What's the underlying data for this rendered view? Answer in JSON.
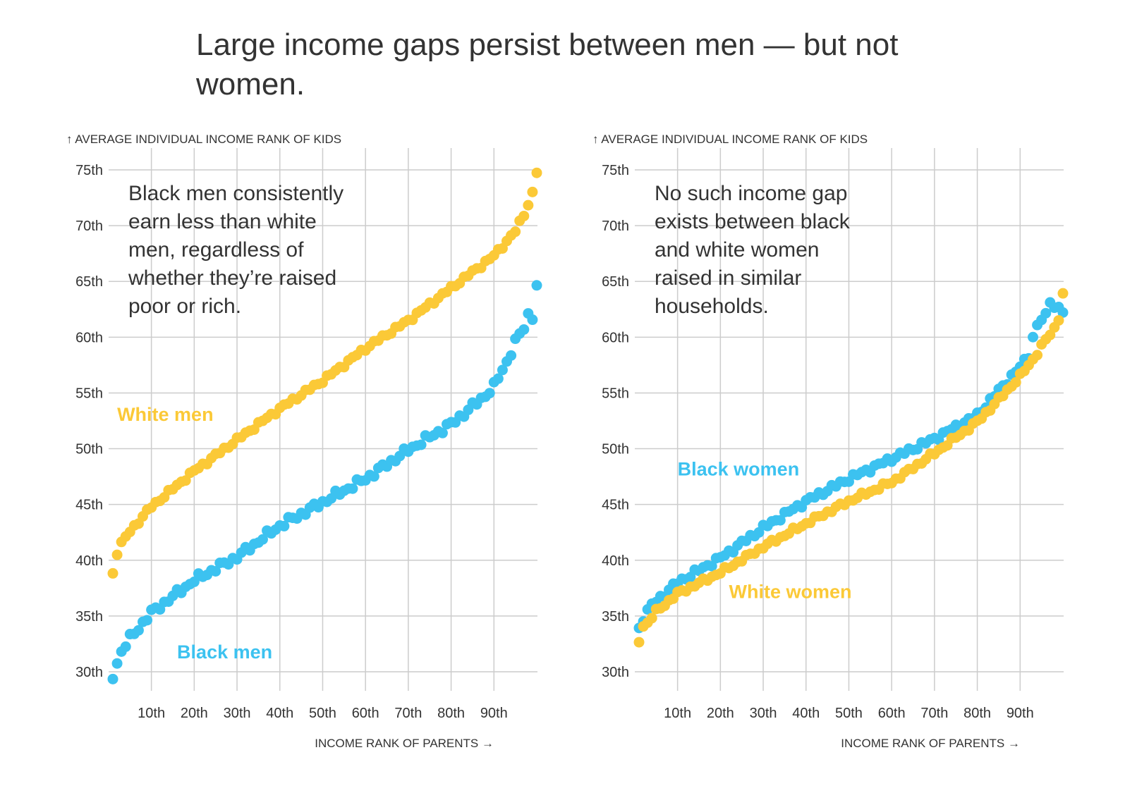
{
  "headline": "Large income gaps persist between men — but not women.",
  "colors": {
    "black": "#3cc2f0",
    "white": "#fbc937",
    "grid": "#cccccc",
    "text": "#333333"
  },
  "chart_data": [
    {
      "type": "scatter",
      "id": "men",
      "ytitle": "↑ AVERAGE INDIVIDUAL INCOME RANK OF KIDS",
      "xtitle": "INCOME RANK OF PARENTS →",
      "annotation": [
        "Black men consistently",
        "earn less than white",
        "men, regardless of",
        "whether they’re raised",
        "poor or rich."
      ],
      "xlim": [
        1,
        100
      ],
      "ylim": [
        28.5,
        75
      ],
      "xticks": [
        10,
        20,
        30,
        40,
        50,
        60,
        70,
        80,
        90
      ],
      "xtick_labels": [
        "10th",
        "20th",
        "30th",
        "40th",
        "50th",
        "60th",
        "70th",
        "80th",
        "90th"
      ],
      "yticks": [
        30,
        35,
        40,
        45,
        50,
        55,
        60,
        65,
        70,
        75
      ],
      "ytick_labels": [
        "30th",
        "35th",
        "40th",
        "45th",
        "50th",
        "55th",
        "60th",
        "65th",
        "70th",
        "75th"
      ],
      "grid": true,
      "series": [
        {
          "name": "White men",
          "color": "#fbc937",
          "label_anchor": [
            2,
            52.5
          ],
          "knots_x": [
            1,
            2,
            3,
            5,
            10,
            20,
            30,
            40,
            50,
            60,
            70,
            80,
            90,
            95,
            97,
            99,
            100
          ],
          "knots_y": [
            38.8,
            40.7,
            41.5,
            42.6,
            44.8,
            48.0,
            50.8,
            53.6,
            56.1,
            59.0,
            61.5,
            64.4,
            67.3,
            69.5,
            71.0,
            72.9,
            74.8
          ],
          "noise": 0.15
        },
        {
          "name": "Black men",
          "color": "#3cc2f0",
          "label_anchor": [
            16,
            31.2
          ],
          "knots_x": [
            1,
            2,
            3,
            5,
            10,
            20,
            30,
            40,
            50,
            60,
            70,
            80,
            85,
            88,
            90,
            93,
            95,
            97,
            98,
            99,
            100
          ],
          "knots_y": [
            29.6,
            30.8,
            31.8,
            33.0,
            35.3,
            38.2,
            40.3,
            43.1,
            45.2,
            47.3,
            49.9,
            52.2,
            53.8,
            54.8,
            55.6,
            57.8,
            59.6,
            60.8,
            62.0,
            61.9,
            64.6
          ],
          "noise": 0.25
        }
      ]
    },
    {
      "type": "scatter",
      "id": "women",
      "ytitle": "↑ AVERAGE INDIVIDUAL INCOME RANK OF KIDS",
      "xtitle": "INCOME RANK OF PARENTS →",
      "annotation": [
        "No such income gap",
        "exists between black",
        "and white women",
        "raised in similar",
        "households."
      ],
      "xlim": [
        1,
        100
      ],
      "ylim": [
        28.5,
        75
      ],
      "xticks": [
        10,
        20,
        30,
        40,
        50,
        60,
        70,
        80,
        90
      ],
      "xtick_labels": [
        "10th",
        "20th",
        "30th",
        "40th",
        "50th",
        "60th",
        "70th",
        "80th",
        "90th"
      ],
      "yticks": [
        30,
        35,
        40,
        45,
        50,
        55,
        60,
        65,
        70,
        75
      ],
      "ytick_labels": [
        "30th",
        "35th",
        "40th",
        "45th",
        "50th",
        "55th",
        "60th",
        "65th",
        "70th",
        "75th"
      ],
      "grid": true,
      "series": [
        {
          "name": "Black women",
          "color": "#3cc2f0",
          "label_anchor": [
            10,
            47.6
          ],
          "knots_x": [
            1,
            2,
            4,
            10,
            20,
            30,
            40,
            50,
            60,
            70,
            80,
            85,
            88,
            90,
            92,
            93,
            94,
            95,
            96,
            97,
            98,
            100
          ],
          "knots_y": [
            33.9,
            34.8,
            36.0,
            38.0,
            40.2,
            42.9,
            45.3,
            47.3,
            49.1,
            50.9,
            53.0,
            55.2,
            56.5,
            57.3,
            58.4,
            60.0,
            61.0,
            61.6,
            61.9,
            63.3,
            62.8,
            62.3
          ],
          "noise": 0.2
        },
        {
          "name": "White women",
          "color": "#fbc937",
          "label_anchor": [
            22,
            36.6
          ],
          "knots_x": [
            1,
            2,
            3,
            5,
            10,
            20,
            30,
            40,
            50,
            60,
            70,
            80,
            85,
            90,
            93,
            95,
            98,
            99,
            100
          ],
          "knots_y": [
            32.8,
            34.1,
            34.4,
            35.4,
            37.0,
            38.9,
            41.2,
            43.3,
            45.3,
            47.0,
            49.6,
            52.4,
            54.4,
            56.5,
            58.0,
            59.2,
            60.8,
            61.7,
            63.9
          ],
          "noise": 0.15
        }
      ]
    }
  ]
}
